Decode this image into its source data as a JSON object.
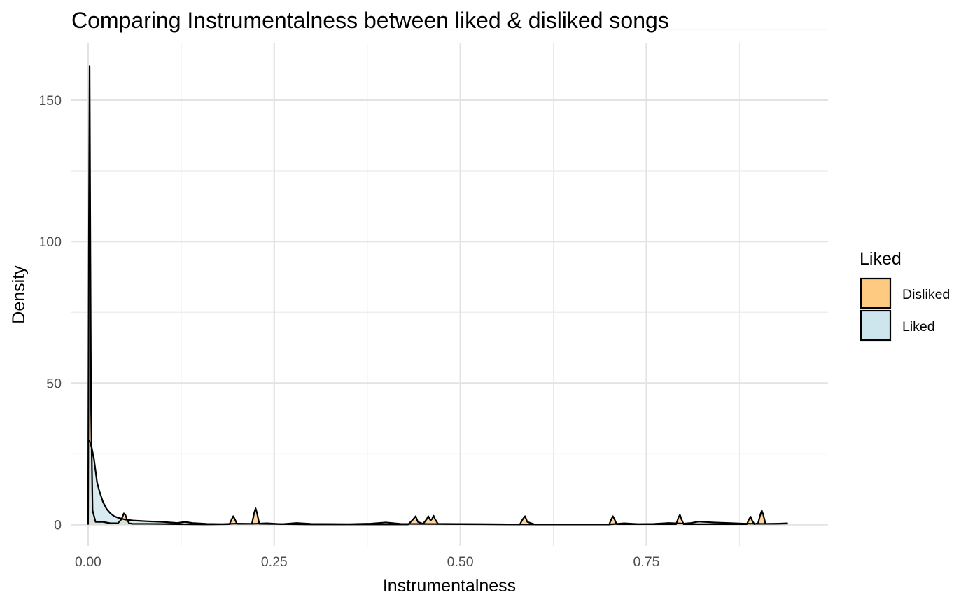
{
  "chart_data": {
    "type": "area",
    "subtype": "density",
    "title": "Comparing Instrumentalness between liked & disliked songs",
    "xlabel": "Instrumentalness",
    "ylabel": "Density",
    "xlim": [
      -0.0225,
      0.994
    ],
    "ylim": [
      -7.5,
      170
    ],
    "x_ticks": [
      0.0,
      0.25,
      0.5,
      0.75
    ],
    "x_tick_labels": [
      "0.00",
      "0.25",
      "0.50",
      "0.75"
    ],
    "y_ticks": [
      0,
      50,
      100,
      150
    ],
    "y_tick_labels": [
      "0",
      "50",
      "100",
      "150"
    ],
    "grid": true,
    "legend": {
      "title": "Liked",
      "position": "right"
    },
    "series": [
      {
        "name": "Disliked",
        "fill": "#fec980",
        "stroke": "#000000",
        "x": [
          0.0,
          0.001,
          0.002,
          0.003,
          0.004,
          0.006,
          0.01,
          0.02,
          0.03,
          0.04,
          0.045,
          0.048,
          0.05,
          0.052,
          0.055,
          0.06,
          0.08,
          0.12,
          0.16,
          0.19,
          0.193,
          0.195,
          0.197,
          0.2,
          0.22,
          0.223,
          0.225,
          0.227,
          0.23,
          0.3,
          0.43,
          0.437,
          0.44,
          0.443,
          0.45,
          0.455,
          0.457,
          0.46,
          0.462,
          0.464,
          0.466,
          0.47,
          0.58,
          0.584,
          0.587,
          0.59,
          0.6,
          0.7,
          0.703,
          0.705,
          0.707,
          0.71,
          0.79,
          0.793,
          0.795,
          0.797,
          0.8,
          0.885,
          0.888,
          0.89,
          0.892,
          0.895,
          0.9,
          0.903,
          0.905,
          0.907,
          0.91,
          0.94
        ],
        "y": [
          0,
          100,
          162,
          100,
          40,
          5,
          1,
          1,
          0.5,
          0.5,
          2,
          4,
          3.5,
          2,
          0.5,
          0.3,
          0.3,
          0.2,
          0.1,
          0.2,
          2,
          3,
          2,
          0.3,
          0.3,
          4,
          5.8,
          4,
          0.3,
          0.1,
          0.1,
          2,
          3,
          1,
          0.3,
          2,
          3,
          1.5,
          2,
          3.2,
          2,
          0.3,
          0.1,
          2,
          3,
          1,
          0.1,
          0.1,
          2,
          3,
          2,
          0.2,
          0.2,
          2.5,
          3.5,
          2,
          0.2,
          0.2,
          2,
          2.8,
          1.5,
          0.2,
          0.5,
          3.5,
          5,
          3.5,
          0.3,
          0.4
        ]
      },
      {
        "name": "Liked",
        "fill": "#cde5ec",
        "stroke": "#000000",
        "x": [
          0.0,
          0.003,
          0.005,
          0.008,
          0.01,
          0.012,
          0.015,
          0.02,
          0.025,
          0.03,
          0.035,
          0.04,
          0.05,
          0.06,
          0.08,
          0.1,
          0.12,
          0.13,
          0.14,
          0.16,
          0.18,
          0.2,
          0.22,
          0.24,
          0.26,
          0.28,
          0.3,
          0.35,
          0.38,
          0.4,
          0.42,
          0.5,
          0.6,
          0.7,
          0.72,
          0.74,
          0.76,
          0.78,
          0.8,
          0.81,
          0.82,
          0.84,
          0.86,
          0.88,
          0.9,
          0.92,
          0.94
        ],
        "y": [
          30,
          29,
          27,
          23,
          19,
          15,
          12,
          8,
          5.5,
          4,
          3,
          2.5,
          1.8,
          1.5,
          1.2,
          1.0,
          0.6,
          1.0,
          0.6,
          0.3,
          0.2,
          0.4,
          0.3,
          0.5,
          0.2,
          0.6,
          0.3,
          0.2,
          0.4,
          0.8,
          0.3,
          0.2,
          0.1,
          0.1,
          0.5,
          0.2,
          0.3,
          0.6,
          0.4,
          0.6,
          1.1,
          0.8,
          0.6,
          0.4,
          0.3,
          0.3,
          0.5
        ]
      }
    ]
  }
}
